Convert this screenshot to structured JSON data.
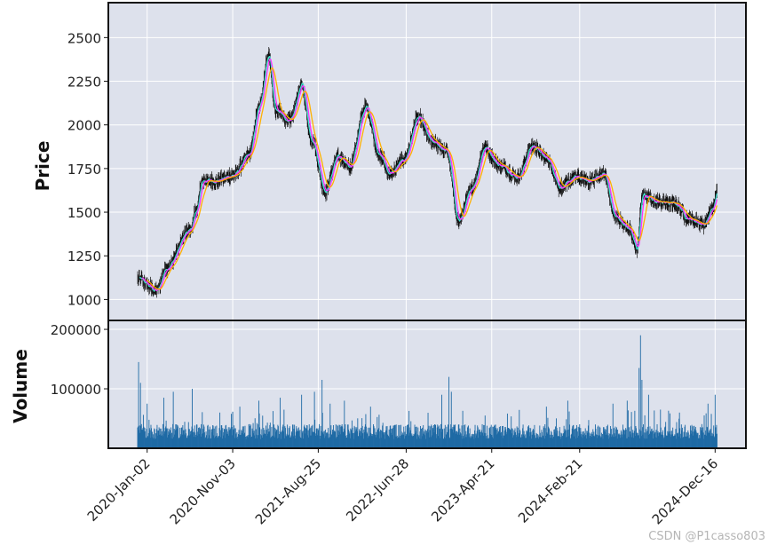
{
  "chart_data": {
    "type": "candlestick",
    "start_date": "2020-01-02",
    "trading_days": 1220,
    "price_panel": {
      "ylabel": "Price",
      "ylim": [
        880,
        2700
      ],
      "yticks": [
        1000,
        1250,
        1500,
        1750,
        2000,
        2250,
        2500
      ],
      "ytick_labels": [
        "1000",
        "1250",
        "1500",
        "1750",
        "2000",
        "2250",
        "2500"
      ],
      "grid": true,
      "moving_averages": [
        {
          "color": "#40e0d0"
        },
        {
          "color": "#ff33ff"
        },
        {
          "color": "#ffb000"
        }
      ],
      "close_anchors": [
        [
          0,
          1120
        ],
        [
          40,
          1050
        ],
        [
          60,
          1180
        ],
        [
          110,
          1400
        ],
        [
          125,
          1520
        ],
        [
          135,
          1680
        ],
        [
          165,
          1680
        ],
        [
          200,
          1710
        ],
        [
          235,
          1830
        ],
        [
          255,
          2100
        ],
        [
          275,
          2400
        ],
        [
          290,
          2080
        ],
        [
          320,
          2020
        ],
        [
          345,
          2230
        ],
        [
          365,
          1920
        ],
        [
          395,
          1620
        ],
        [
          420,
          1820
        ],
        [
          445,
          1760
        ],
        [
          480,
          2100
        ],
        [
          510,
          1820
        ],
        [
          530,
          1720
        ],
        [
          560,
          1800
        ],
        [
          590,
          2040
        ],
        [
          620,
          1900
        ],
        [
          650,
          1850
        ],
        [
          675,
          1450
        ],
        [
          705,
          1650
        ],
        [
          730,
          1870
        ],
        [
          760,
          1770
        ],
        [
          800,
          1700
        ],
        [
          830,
          1880
        ],
        [
          860,
          1810
        ],
        [
          890,
          1640
        ],
        [
          920,
          1700
        ],
        [
          950,
          1680
        ],
        [
          980,
          1720
        ],
        [
          1005,
          1470
        ],
        [
          1035,
          1400
        ],
        [
          1050,
          1290
        ],
        [
          1062,
          1600
        ],
        [
          1090,
          1560
        ],
        [
          1130,
          1550
        ],
        [
          1160,
          1460
        ],
        [
          1190,
          1430
        ],
        [
          1210,
          1520
        ],
        [
          1220,
          1640
        ]
      ]
    },
    "volume_panel": {
      "ylabel": "Volume",
      "ylim": [
        0,
        215000
      ],
      "yticks": [
        100000,
        200000
      ],
      "ytick_labels": [
        "100000",
        "200000"
      ],
      "bar_color": "#1f6aa5",
      "baseline": 28000,
      "spikes": [
        [
          2,
          145000
        ],
        [
          6,
          110000
        ],
        [
          20,
          75000
        ],
        [
          55,
          85000
        ],
        [
          75,
          95000
        ],
        [
          115,
          100000
        ],
        [
          215,
          70000
        ],
        [
          255,
          80000
        ],
        [
          300,
          85000
        ],
        [
          345,
          90000
        ],
        [
          372,
          95000
        ],
        [
          388,
          115000
        ],
        [
          405,
          75000
        ],
        [
          435,
          80000
        ],
        [
          490,
          70000
        ],
        [
          640,
          90000
        ],
        [
          655,
          120000
        ],
        [
          660,
          95000
        ],
        [
          860,
          70000
        ],
        [
          905,
          80000
        ],
        [
          1000,
          75000
        ],
        [
          1030,
          80000
        ],
        [
          1055,
          135000
        ],
        [
          1058,
          190000
        ],
        [
          1061,
          115000
        ],
        [
          1075,
          90000
        ],
        [
          1100,
          65000
        ],
        [
          1140,
          60000
        ],
        [
          1200,
          75000
        ],
        [
          1215,
          90000
        ]
      ]
    },
    "x_axis": {
      "tick_days": [
        20,
        200,
        380,
        565,
        745,
        930,
        1215
      ],
      "tick_labels": [
        "2020-Jan-02",
        "2020-Nov-03",
        "2021-Aug-25",
        "2022-Jun-28",
        "2023-Apr-21",
        "2024-Feb-21",
        "2024-Dec-16"
      ]
    }
  },
  "watermark": "CSDN @P1casso803",
  "colors": {
    "plot_background": "#dde1ec",
    "grid": "#ffffff",
    "frame": "#111111",
    "candle": "#111111"
  }
}
